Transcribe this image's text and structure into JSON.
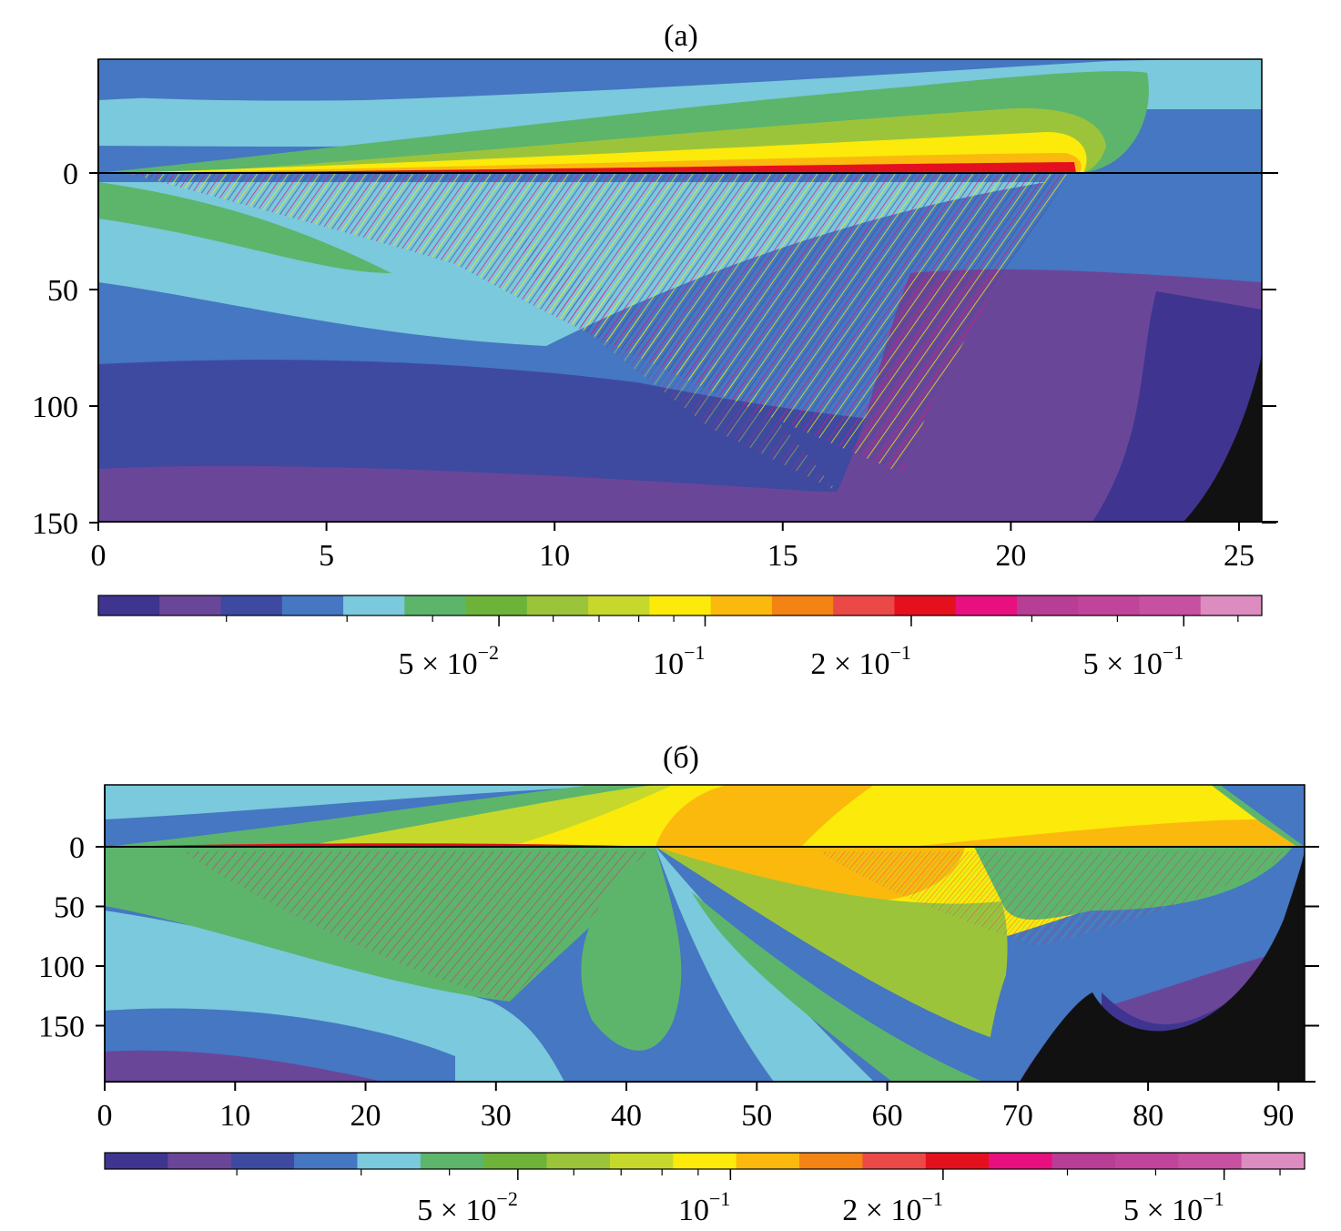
{
  "chart_data": [
    {
      "type": "heatmap",
      "title": "(а)",
      "xlabel": "",
      "ylabel": "",
      "xlim": [
        0,
        25.5
      ],
      "ylim": [
        150,
        -48
      ],
      "x_ticks": [
        0,
        5,
        10,
        15,
        20,
        25
      ],
      "x_tick_labels": [
        "0",
        "5",
        "10",
        "15",
        "20",
        "25"
      ],
      "y_ticks": [
        0,
        50,
        100,
        150
      ],
      "y_tick_labels": [
        "0",
        "50",
        "100",
        "150"
      ],
      "colorbar": {
        "scale": "log",
        "range": [
          0.013,
          0.65
        ],
        "tick_values": [
          0.05,
          0.1,
          0.2,
          0.5
        ],
        "tick_labels": [
          {
            "base": "5 × 10",
            "exp": "−2"
          },
          {
            "base": "10",
            "exp": "−1"
          },
          {
            "base": "2 × 10",
            "exp": "−1"
          },
          {
            "base": "5 × 10",
            "exp": "−1"
          }
        ],
        "colors": [
          "#3f3590",
          "#6a4699",
          "#3e4aa0",
          "#4577c2",
          "#7ac9dc",
          "#5cb56b",
          "#6db33a",
          "#9cc43b",
          "#c6d82c",
          "#fbea0a",
          "#fbb90e",
          "#f38313",
          "#ea4948",
          "#e5101e",
          "#e8107e",
          "#b83d94",
          "#c0449a",
          "#c750a0",
          "#dc8cbf"
        ]
      }
    },
    {
      "type": "heatmap",
      "title": "(б)",
      "xlabel": "",
      "ylabel": "",
      "xlim": [
        0,
        92
      ],
      "ylim": [
        197,
        -48
      ],
      "x_ticks": [
        0,
        10,
        20,
        30,
        40,
        50,
        60,
        70,
        80,
        90
      ],
      "x_tick_labels": [
        "0",
        "10",
        "20",
        "30",
        "40",
        "50",
        "60",
        "70",
        "80",
        "90"
      ],
      "y_ticks": [
        0,
        50,
        100,
        150
      ],
      "y_tick_labels": [
        "0",
        "50",
        "100",
        "150"
      ],
      "colorbar": {
        "scale": "log",
        "range": [
          0.013,
          0.65
        ],
        "tick_values": [
          0.05,
          0.1,
          0.2,
          0.5
        ],
        "tick_labels": [
          {
            "base": "5 × 10",
            "exp": "−2"
          },
          {
            "base": "10",
            "exp": "−1"
          },
          {
            "base": "2 × 10",
            "exp": "−1"
          },
          {
            "base": "5 × 10",
            "exp": "−1"
          }
        ],
        "colors": [
          "#3f3590",
          "#6a4699",
          "#3e4aa0",
          "#4577c2",
          "#7ac9dc",
          "#5cb56b",
          "#6db33a",
          "#9cc43b",
          "#c6d82c",
          "#fbea0a",
          "#fbb90e",
          "#f38313",
          "#ea4948",
          "#e5101e",
          "#e8107e",
          "#b83d94",
          "#c0449a",
          "#c750a0",
          "#dc8cbf"
        ]
      }
    }
  ]
}
